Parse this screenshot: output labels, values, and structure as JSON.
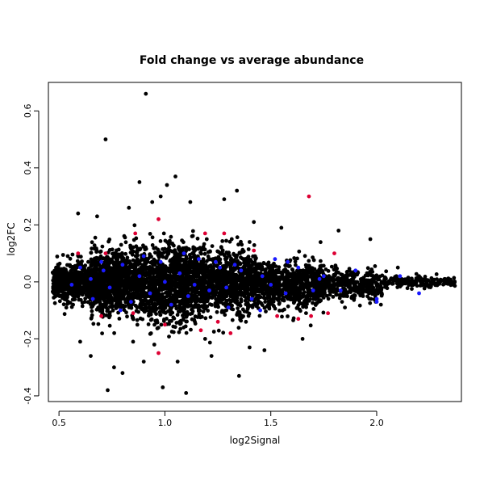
{
  "chart_data": {
    "type": "scatter",
    "title": "Fold change vs average abundance",
    "xlabel": "log2Signal",
    "ylabel": "log2FC",
    "xlim": [
      0.45,
      2.4
    ],
    "ylim": [
      -0.42,
      0.7
    ],
    "x_ticks": [
      0.5,
      1.0,
      1.5,
      2.0
    ],
    "x_tick_labels": [
      "0.5",
      "1.0",
      "1.5",
      "2.0"
    ],
    "y_ticks": [
      -0.4,
      -0.2,
      0.0,
      0.2,
      0.4,
      0.6
    ],
    "y_tick_labels": [
      "-0.4",
      "-0.2",
      "0.0",
      "0.2",
      "0.4",
      "0.6"
    ],
    "grid": false,
    "legend": "none",
    "colors": {
      "black": "#000000",
      "red": "#dd0033",
      "blue": "#1a1aff"
    },
    "series": [
      {
        "color": "black",
        "points": [
          [
            0.91,
            0.66
          ],
          [
            0.72,
            0.5
          ],
          [
            0.88,
            0.35
          ],
          [
            1.05,
            0.37
          ],
          [
            1.01,
            0.34
          ],
          [
            0.98,
            0.3
          ],
          [
            0.94,
            0.28
          ],
          [
            1.12,
            0.28
          ],
          [
            0.83,
            0.26
          ],
          [
            1.34,
            0.32
          ],
          [
            1.28,
            0.29
          ],
          [
            0.59,
            0.24
          ],
          [
            0.68,
            0.23
          ],
          [
            1.42,
            0.21
          ],
          [
            1.55,
            0.19
          ],
          [
            1.82,
            0.18
          ],
          [
            1.97,
            0.15
          ],
          [
            2.1,
            0.05
          ],
          [
            2.2,
            0.02
          ],
          [
            2.32,
            0.0
          ],
          [
            2.36,
            -0.01
          ],
          [
            0.73,
            -0.38
          ],
          [
            0.99,
            -0.37
          ],
          [
            1.1,
            -0.39
          ],
          [
            1.35,
            -0.33
          ],
          [
            0.8,
            -0.32
          ],
          [
            0.9,
            -0.28
          ],
          [
            0.76,
            -0.3
          ],
          [
            0.65,
            -0.26
          ],
          [
            1.47,
            -0.24
          ],
          [
            1.4,
            -0.23
          ],
          [
            1.22,
            -0.26
          ],
          [
            0.6,
            -0.21
          ],
          [
            1.06,
            -0.28
          ],
          [
            1.65,
            -0.2
          ],
          [
            1.85,
            -0.09
          ],
          [
            2.02,
            -0.08
          ],
          [
            0.95,
            -0.22
          ],
          [
            1.19,
            -0.2
          ],
          [
            0.85,
            -0.21
          ]
        ],
        "density_bands": [
          {
            "x_range": [
              0.47,
              0.65
            ],
            "y_mean": 0.0,
            "y_sd": 0.035,
            "count": 500
          },
          {
            "x_range": [
              0.65,
              0.85
            ],
            "y_mean": 0.0,
            "y_sd": 0.055,
            "count": 900
          },
          {
            "x_range": [
              0.85,
              1.15
            ],
            "y_mean": 0.0,
            "y_sd": 0.065,
            "count": 1200
          },
          {
            "x_range": [
              1.15,
              1.45
            ],
            "y_mean": 0.0,
            "y_sd": 0.055,
            "count": 1000
          },
          {
            "x_range": [
              1.45,
              1.75
            ],
            "y_mean": -0.01,
            "y_sd": 0.04,
            "count": 700
          },
          {
            "x_range": [
              1.75,
              2.05
            ],
            "y_mean": -0.01,
            "y_sd": 0.025,
            "count": 400
          },
          {
            "x_range": [
              2.05,
              2.37
            ],
            "y_mean": 0.0,
            "y_sd": 0.01,
            "count": 150
          }
        ]
      },
      {
        "color": "red",
        "points": [
          [
            1.68,
            0.3
          ],
          [
            0.97,
            0.22
          ],
          [
            0.72,
            0.1
          ],
          [
            0.59,
            0.1
          ],
          [
            0.86,
            0.17
          ],
          [
            1.19,
            0.17
          ],
          [
            1.28,
            0.17
          ],
          [
            1.42,
            0.11
          ],
          [
            1.63,
            -0.13
          ],
          [
            1.77,
            -0.11
          ],
          [
            1.69,
            -0.12
          ],
          [
            1.53,
            -0.12
          ],
          [
            1.31,
            -0.18
          ],
          [
            0.97,
            -0.25
          ],
          [
            0.85,
            -0.11
          ],
          [
            0.7,
            -0.12
          ],
          [
            1.17,
            -0.17
          ],
          [
            1.25,
            -0.14
          ],
          [
            1.0,
            -0.15
          ],
          [
            1.8,
            0.1
          ]
        ]
      },
      {
        "color": "blue",
        "points": [
          [
            0.6,
            0.05
          ],
          [
            0.66,
            -0.06
          ],
          [
            0.71,
            0.04
          ],
          [
            0.74,
            -0.02
          ],
          [
            0.8,
            0.06
          ],
          [
            0.84,
            -0.07
          ],
          [
            0.88,
            0.02
          ],
          [
            0.93,
            -0.04
          ],
          [
            0.98,
            0.07
          ],
          [
            1.03,
            -0.08
          ],
          [
            1.07,
            0.03
          ],
          [
            1.11,
            -0.05
          ],
          [
            1.16,
            0.08
          ],
          [
            1.21,
            -0.03
          ],
          [
            1.26,
            0.05
          ],
          [
            1.3,
            -0.09
          ],
          [
            1.36,
            0.04
          ],
          [
            1.41,
            -0.06
          ],
          [
            1.46,
            0.02
          ],
          [
            1.52,
            0.08
          ],
          [
            1.57,
            -0.04
          ],
          [
            1.63,
            0.05
          ],
          [
            1.7,
            -0.03
          ],
          [
            1.75,
            0.02
          ],
          [
            1.83,
            -0.03
          ],
          [
            1.9,
            0.04
          ],
          [
            2.0,
            -0.06
          ],
          [
            2.11,
            0.02
          ],
          [
            2.2,
            -0.04
          ],
          [
            0.65,
            0.01
          ],
          [
            0.79,
            -0.1
          ],
          [
            1.0,
            0.0
          ],
          [
            1.14,
            -0.01
          ],
          [
            1.33,
            0.06
          ],
          [
            1.5,
            -0.01
          ],
          [
            1.73,
            0.01
          ],
          [
            0.9,
            0.09
          ],
          [
            1.09,
            0.1
          ],
          [
            1.24,
            0.07
          ],
          [
            1.45,
            -0.1
          ],
          [
            2.0,
            -0.07
          ],
          [
            1.58,
            0.07
          ],
          [
            0.56,
            -0.01
          ],
          [
            0.7,
            0.07
          ],
          [
            1.29,
            -0.02
          ]
        ]
      }
    ]
  }
}
